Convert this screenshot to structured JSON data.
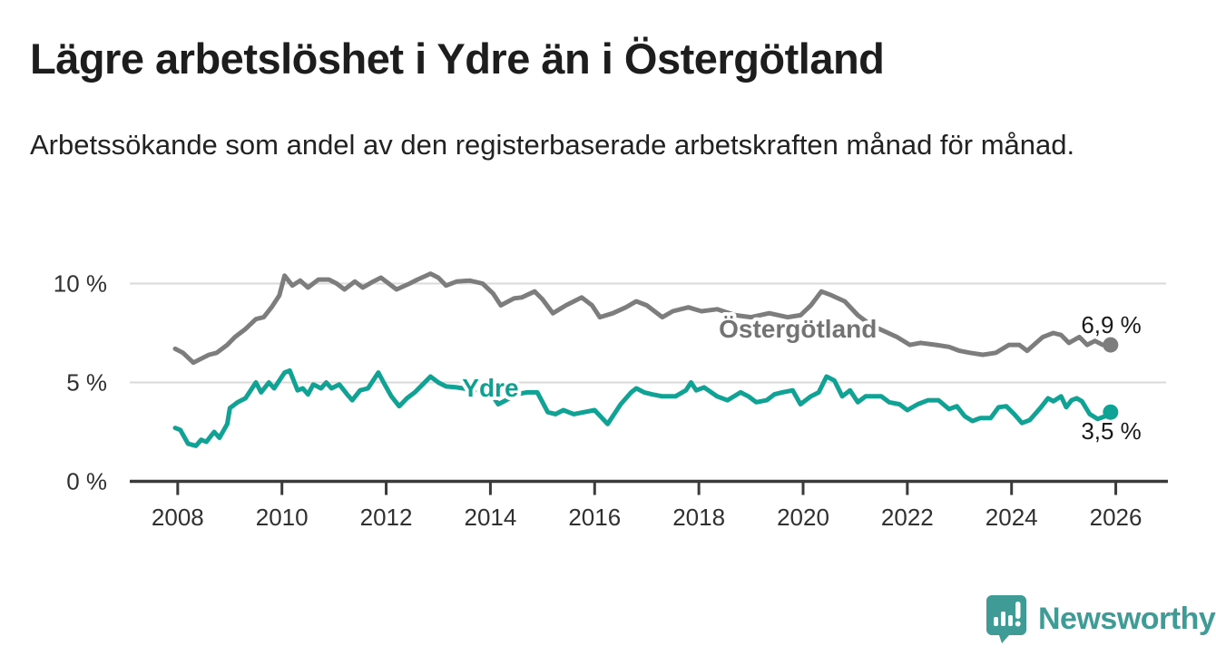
{
  "header": {
    "title": "Lägre arbetslöshet i Ydre än i Östergötland",
    "subtitle": "Arbetssökande som andel av den registerbaserade arbetskraften månad för månad."
  },
  "chart_data": {
    "type": "line",
    "title": "Lägre arbetslöshet i Ydre än i Östergötland",
    "subtitle": "Arbetssökande som andel av den registerbaserade arbetskraften månad för månad.",
    "unit": "%",
    "grid": "horizontal-only",
    "x_axis": {
      "range": [
        2007.08,
        2027.0
      ],
      "ticks": [
        {
          "value": 2008,
          "label": "2008"
        },
        {
          "value": 2010,
          "label": "2010"
        },
        {
          "value": 2012,
          "label": "2012"
        },
        {
          "value": 2014,
          "label": "2014"
        },
        {
          "value": 2016,
          "label": "2016"
        },
        {
          "value": 2018,
          "label": "2018"
        },
        {
          "value": 2020,
          "label": "2020"
        },
        {
          "value": 2022,
          "label": "2022"
        },
        {
          "value": 2024,
          "label": "2024"
        },
        {
          "value": 2026,
          "label": "2026"
        }
      ]
    },
    "y_axis": {
      "range": [
        0,
        10.9
      ],
      "ticks": [
        {
          "value": 0,
          "label": "0 %"
        },
        {
          "value": 5,
          "label": "5 %"
        },
        {
          "value": 10,
          "label": "10 %"
        }
      ],
      "gridline_values": [
        5,
        10
      ]
    },
    "series": [
      {
        "id": "ostergotland",
        "name": "Östergötland",
        "color": "#7d7d7d",
        "label_color": "#737373",
        "label_at": {
          "x": 2019.9,
          "y": 7.27
        },
        "end_value": 6.9,
        "end_label": "6,9 %",
        "end_label_side": "above",
        "points": [
          [
            2007.95,
            6.7
          ],
          [
            2008.1,
            6.5
          ],
          [
            2008.3,
            6.0
          ],
          [
            2008.45,
            6.2
          ],
          [
            2008.6,
            6.4
          ],
          [
            2008.75,
            6.5
          ],
          [
            2008.95,
            6.9
          ],
          [
            2009.1,
            7.3
          ],
          [
            2009.3,
            7.7
          ],
          [
            2009.5,
            8.2
          ],
          [
            2009.65,
            8.3
          ],
          [
            2009.8,
            8.8
          ],
          [
            2009.95,
            9.4
          ],
          [
            2010.05,
            10.4
          ],
          [
            2010.2,
            9.9
          ],
          [
            2010.35,
            10.15
          ],
          [
            2010.5,
            9.8
          ],
          [
            2010.7,
            10.2
          ],
          [
            2010.9,
            10.2
          ],
          [
            2011.05,
            10.0
          ],
          [
            2011.2,
            9.7
          ],
          [
            2011.4,
            10.1
          ],
          [
            2011.55,
            9.8
          ],
          [
            2011.75,
            10.1
          ],
          [
            2011.9,
            10.3
          ],
          [
            2012.05,
            10.0
          ],
          [
            2012.2,
            9.7
          ],
          [
            2012.45,
            10.0
          ],
          [
            2012.6,
            10.2
          ],
          [
            2012.85,
            10.5
          ],
          [
            2013.0,
            10.3
          ],
          [
            2013.15,
            9.9
          ],
          [
            2013.35,
            10.1
          ],
          [
            2013.6,
            10.15
          ],
          [
            2013.85,
            10.0
          ],
          [
            2014.05,
            9.5
          ],
          [
            2014.2,
            8.9
          ],
          [
            2014.45,
            9.25
          ],
          [
            2014.6,
            9.3
          ],
          [
            2014.85,
            9.6
          ],
          [
            2015.0,
            9.2
          ],
          [
            2015.2,
            8.5
          ],
          [
            2015.45,
            8.9
          ],
          [
            2015.75,
            9.3
          ],
          [
            2015.95,
            8.9
          ],
          [
            2016.1,
            8.3
          ],
          [
            2016.35,
            8.5
          ],
          [
            2016.6,
            8.8
          ],
          [
            2016.8,
            9.1
          ],
          [
            2017.0,
            8.9
          ],
          [
            2017.3,
            8.3
          ],
          [
            2017.5,
            8.6
          ],
          [
            2017.8,
            8.8
          ],
          [
            2018.05,
            8.6
          ],
          [
            2018.35,
            8.7
          ],
          [
            2018.7,
            8.4
          ],
          [
            2019.0,
            8.3
          ],
          [
            2019.35,
            8.5
          ],
          [
            2019.7,
            8.3
          ],
          [
            2019.95,
            8.4
          ],
          [
            2020.15,
            8.9
          ],
          [
            2020.35,
            9.6
          ],
          [
            2020.55,
            9.4
          ],
          [
            2020.8,
            9.1
          ],
          [
            2021.05,
            8.4
          ],
          [
            2021.3,
            7.9
          ],
          [
            2021.55,
            7.6
          ],
          [
            2021.8,
            7.3
          ],
          [
            2022.05,
            6.9
          ],
          [
            2022.25,
            7.0
          ],
          [
            2022.55,
            6.9
          ],
          [
            2022.8,
            6.8
          ],
          [
            2023.0,
            6.6
          ],
          [
            2023.2,
            6.5
          ],
          [
            2023.45,
            6.4
          ],
          [
            2023.7,
            6.5
          ],
          [
            2023.95,
            6.9
          ],
          [
            2024.15,
            6.9
          ],
          [
            2024.3,
            6.6
          ],
          [
            2024.6,
            7.3
          ],
          [
            2024.8,
            7.5
          ],
          [
            2024.95,
            7.4
          ],
          [
            2025.1,
            7.0
          ],
          [
            2025.3,
            7.3
          ],
          [
            2025.45,
            6.9
          ],
          [
            2025.6,
            7.1
          ],
          [
            2025.75,
            6.9
          ],
          [
            2025.9,
            6.9
          ]
        ]
      },
      {
        "id": "ydre",
        "name": "Ydre",
        "color": "#10a294",
        "label_color": "#0fa091",
        "label_at": {
          "x": 2014.0,
          "y": 4.29
        },
        "end_value": 3.5,
        "end_label": "3,5 %",
        "end_label_side": "below",
        "points": [
          [
            2007.95,
            2.7
          ],
          [
            2008.05,
            2.6
          ],
          [
            2008.2,
            1.9
          ],
          [
            2008.35,
            1.8
          ],
          [
            2008.45,
            2.1
          ],
          [
            2008.55,
            2.0
          ],
          [
            2008.7,
            2.5
          ],
          [
            2008.8,
            2.2
          ],
          [
            2008.95,
            2.9
          ],
          [
            2009.0,
            3.7
          ],
          [
            2009.15,
            4.0
          ],
          [
            2009.3,
            4.2
          ],
          [
            2009.5,
            5.0
          ],
          [
            2009.6,
            4.5
          ],
          [
            2009.75,
            5.0
          ],
          [
            2009.85,
            4.7
          ],
          [
            2010.05,
            5.5
          ],
          [
            2010.15,
            5.6
          ],
          [
            2010.3,
            4.6
          ],
          [
            2010.4,
            4.7
          ],
          [
            2010.5,
            4.4
          ],
          [
            2010.6,
            4.9
          ],
          [
            2010.75,
            4.7
          ],
          [
            2010.85,
            5.0
          ],
          [
            2010.95,
            4.7
          ],
          [
            2011.1,
            4.9
          ],
          [
            2011.25,
            4.4
          ],
          [
            2011.35,
            4.1
          ],
          [
            2011.5,
            4.6
          ],
          [
            2011.65,
            4.7
          ],
          [
            2011.85,
            5.5
          ],
          [
            2011.95,
            5.0
          ],
          [
            2012.1,
            4.3
          ],
          [
            2012.25,
            3.8
          ],
          [
            2012.4,
            4.2
          ],
          [
            2012.55,
            4.5
          ],
          [
            2012.7,
            4.9
          ],
          [
            2012.85,
            5.3
          ],
          [
            2013.0,
            5.0
          ],
          [
            2013.15,
            4.8
          ],
          [
            2013.35,
            4.75
          ],
          [
            2013.6,
            4.65
          ],
          [
            2013.8,
            4.6
          ],
          [
            2014.0,
            4.5
          ],
          [
            2014.15,
            3.9
          ],
          [
            2014.3,
            4.1
          ],
          [
            2014.5,
            4.4
          ],
          [
            2014.7,
            4.5
          ],
          [
            2014.9,
            4.5
          ],
          [
            2015.1,
            3.5
          ],
          [
            2015.25,
            3.4
          ],
          [
            2015.4,
            3.6
          ],
          [
            2015.6,
            3.4
          ],
          [
            2015.8,
            3.5
          ],
          [
            2016.0,
            3.6
          ],
          [
            2016.25,
            2.9
          ],
          [
            2016.5,
            3.9
          ],
          [
            2016.7,
            4.5
          ],
          [
            2016.8,
            4.7
          ],
          [
            2016.95,
            4.5
          ],
          [
            2017.1,
            4.4
          ],
          [
            2017.3,
            4.3
          ],
          [
            2017.55,
            4.3
          ],
          [
            2017.75,
            4.6
          ],
          [
            2017.85,
            5.0
          ],
          [
            2017.95,
            4.6
          ],
          [
            2018.1,
            4.75
          ],
          [
            2018.35,
            4.3
          ],
          [
            2018.55,
            4.1
          ],
          [
            2018.8,
            4.5
          ],
          [
            2018.95,
            4.3
          ],
          [
            2019.1,
            4.0
          ],
          [
            2019.3,
            4.1
          ],
          [
            2019.45,
            4.4
          ],
          [
            2019.6,
            4.5
          ],
          [
            2019.8,
            4.6
          ],
          [
            2019.95,
            3.9
          ],
          [
            2020.15,
            4.3
          ],
          [
            2020.3,
            4.5
          ],
          [
            2020.45,
            5.3
          ],
          [
            2020.6,
            5.1
          ],
          [
            2020.75,
            4.3
          ],
          [
            2020.9,
            4.6
          ],
          [
            2021.05,
            4.0
          ],
          [
            2021.2,
            4.3
          ],
          [
            2021.35,
            4.3
          ],
          [
            2021.5,
            4.3
          ],
          [
            2021.65,
            4.0
          ],
          [
            2021.85,
            3.9
          ],
          [
            2022.0,
            3.6
          ],
          [
            2022.2,
            3.9
          ],
          [
            2022.4,
            4.1
          ],
          [
            2022.6,
            4.1
          ],
          [
            2022.8,
            3.65
          ],
          [
            2022.95,
            3.8
          ],
          [
            2023.1,
            3.3
          ],
          [
            2023.25,
            3.05
          ],
          [
            2023.4,
            3.2
          ],
          [
            2023.6,
            3.2
          ],
          [
            2023.75,
            3.75
          ],
          [
            2023.9,
            3.8
          ],
          [
            2024.05,
            3.4
          ],
          [
            2024.2,
            2.95
          ],
          [
            2024.35,
            3.1
          ],
          [
            2024.55,
            3.7
          ],
          [
            2024.7,
            4.2
          ],
          [
            2024.8,
            4.05
          ],
          [
            2024.95,
            4.3
          ],
          [
            2025.05,
            3.75
          ],
          [
            2025.15,
            4.1
          ],
          [
            2025.25,
            4.2
          ],
          [
            2025.35,
            4.05
          ],
          [
            2025.5,
            3.4
          ],
          [
            2025.65,
            3.15
          ],
          [
            2025.8,
            3.3
          ],
          [
            2025.9,
            3.5
          ]
        ]
      }
    ],
    "colors": {
      "axis": "#3a3a3a",
      "gridline": "#dadada",
      "tick_text": "#303030",
      "value_text": "#191919"
    }
  },
  "branding": {
    "logo_text": "Newsworthy",
    "logo_color": "#3f9b95"
  }
}
